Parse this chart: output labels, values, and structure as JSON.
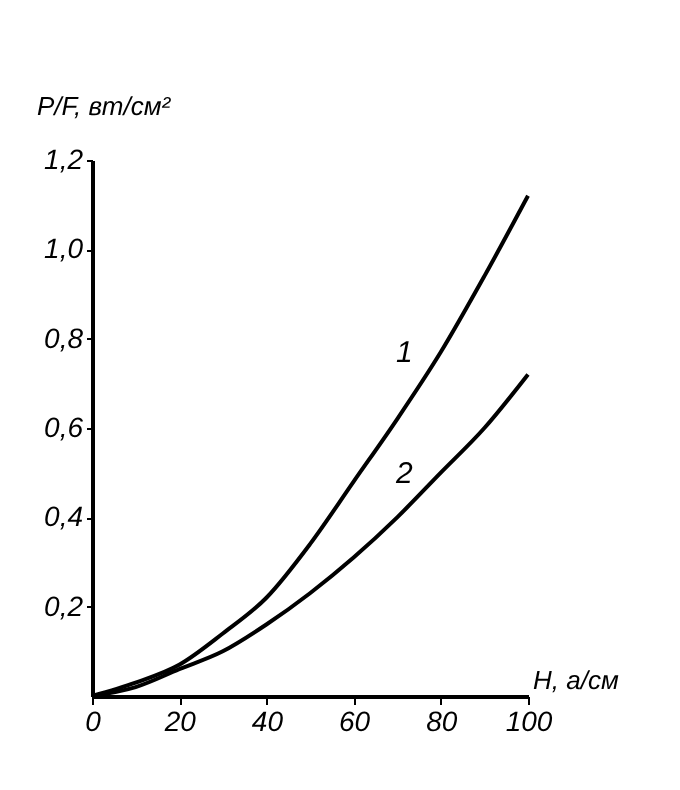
{
  "chart_data": {
    "type": "line",
    "xlabel": "H, а/см",
    "ylabel": "P/F, вт/см²",
    "xlim": [
      0,
      100
    ],
    "xticks": [
      0,
      20,
      40,
      60,
      80,
      100
    ],
    "ylim": [
      0,
      1.2
    ],
    "yticks": [
      {
        "value": 0.2,
        "label": "0,2"
      },
      {
        "value": 0.4,
        "label": "0,4"
      },
      {
        "value": 0.6,
        "label": "0,6"
      },
      {
        "value": 0.8,
        "label": "0,8"
      },
      {
        "value": 1.0,
        "label": "1,0"
      },
      {
        "value": 1.2,
        "label": "1,2"
      }
    ],
    "x": [
      0,
      10,
      20,
      30,
      40,
      50,
      60,
      70,
      80,
      90,
      100
    ],
    "series": [
      {
        "name": "1",
        "color": "#000000",
        "values": [
          0,
          0.03,
          0.07,
          0.14,
          0.22,
          0.34,
          0.48,
          0.62,
          0.77,
          0.94,
          1.12
        ]
      },
      {
        "name": "2",
        "color": "#000000",
        "values": [
          0,
          0.02,
          0.06,
          0.1,
          0.16,
          0.23,
          0.31,
          0.4,
          0.5,
          0.6,
          0.72
        ]
      }
    ],
    "grid": false,
    "legend": false,
    "marker": "none",
    "line_style": "solid"
  }
}
